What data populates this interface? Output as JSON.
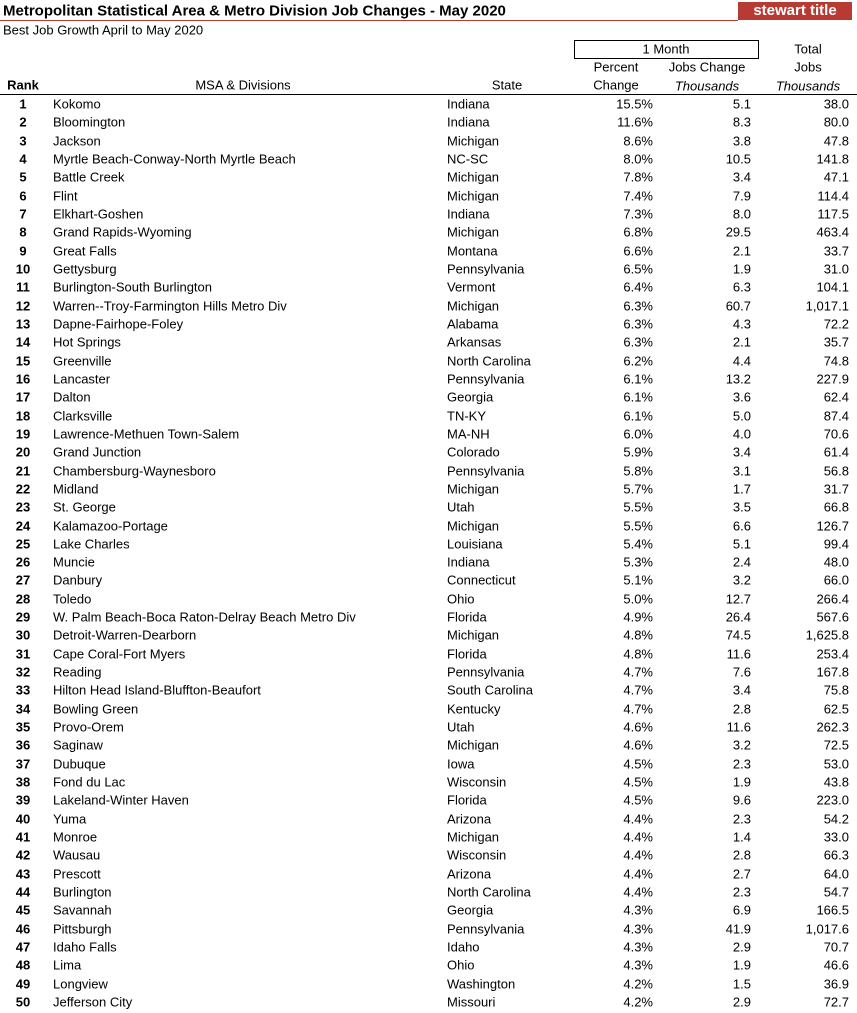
{
  "header": {
    "title": "Metropolitan Statistical Area & Metro Division Job Changes - May 2020",
    "logo": "stewart title",
    "subtitle": "Best Job Growth April to May 2020"
  },
  "table": {
    "group": "1 Month",
    "columns": {
      "rank": "Rank",
      "msa": "MSA & Divisions",
      "state": "State",
      "percent": [
        "Percent",
        "Change"
      ],
      "jobs_change": [
        "Jobs Change",
        "Thousands"
      ],
      "total": [
        "Total",
        "Jobs",
        "Thousands"
      ]
    },
    "rows": [
      [
        "1",
        "Kokomo",
        "Indiana",
        "15.5%",
        "5.1",
        "38.0"
      ],
      [
        "2",
        "Bloomington",
        "Indiana",
        "11.6%",
        "8.3",
        "80.0"
      ],
      [
        "3",
        "Jackson",
        "Michigan",
        "8.6%",
        "3.8",
        "47.8"
      ],
      [
        "4",
        "Myrtle Beach-Conway-North Myrtle Beach",
        "NC-SC",
        "8.0%",
        "10.5",
        "141.8"
      ],
      [
        "5",
        "Battle Creek",
        "Michigan",
        "7.8%",
        "3.4",
        "47.1"
      ],
      [
        "6",
        "Flint",
        "Michigan",
        "7.4%",
        "7.9",
        "114.4"
      ],
      [
        "7",
        "Elkhart-Goshen",
        "Indiana",
        "7.3%",
        "8.0",
        "117.5"
      ],
      [
        "8",
        "Grand Rapids-Wyoming",
        "Michigan",
        "6.8%",
        "29.5",
        "463.4"
      ],
      [
        "9",
        "Great Falls",
        "Montana",
        "6.6%",
        "2.1",
        "33.7"
      ],
      [
        "10",
        "Gettysburg",
        "Pennsylvania",
        "6.5%",
        "1.9",
        "31.0"
      ],
      [
        "11",
        "Burlington-South Burlington",
        "Vermont",
        "6.4%",
        "6.3",
        "104.1"
      ],
      [
        "12",
        "Warren--Troy-Farmington Hills Metro Div",
        "Michigan",
        "6.3%",
        "60.7",
        "1,017.1"
      ],
      [
        "13",
        "Dapne-Fairhope-Foley",
        "Alabama",
        "6.3%",
        "4.3",
        "72.2"
      ],
      [
        "14",
        "Hot Springs",
        "Arkansas",
        "6.3%",
        "2.1",
        "35.7"
      ],
      [
        "15",
        "Greenville",
        "North Carolina",
        "6.2%",
        "4.4",
        "74.8"
      ],
      [
        "16",
        "Lancaster",
        "Pennsylvania",
        "6.1%",
        "13.2",
        "227.9"
      ],
      [
        "17",
        "Dalton",
        "Georgia",
        "6.1%",
        "3.6",
        "62.4"
      ],
      [
        "18",
        "Clarksville",
        "TN-KY",
        "6.1%",
        "5.0",
        "87.4"
      ],
      [
        "19",
        "Lawrence-Methuen Town-Salem",
        "MA-NH",
        "6.0%",
        "4.0",
        "70.6"
      ],
      [
        "20",
        "Grand Junction",
        "Colorado",
        "5.9%",
        "3.4",
        "61.4"
      ],
      [
        "21",
        "Chambersburg-Waynesboro",
        "Pennsylvania",
        "5.8%",
        "3.1",
        "56.8"
      ],
      [
        "22",
        "Midland",
        "Michigan",
        "5.7%",
        "1.7",
        "31.7"
      ],
      [
        "23",
        "St. George",
        "Utah",
        "5.5%",
        "3.5",
        "66.8"
      ],
      [
        "24",
        "Kalamazoo-Portage",
        "Michigan",
        "5.5%",
        "6.6",
        "126.7"
      ],
      [
        "25",
        "Lake Charles",
        "Louisiana",
        "5.4%",
        "5.1",
        "99.4"
      ],
      [
        "26",
        "Muncie",
        "Indiana",
        "5.3%",
        "2.4",
        "48.0"
      ],
      [
        "27",
        "Danbury",
        "Connecticut",
        "5.1%",
        "3.2",
        "66.0"
      ],
      [
        "28",
        "Toledo",
        "Ohio",
        "5.0%",
        "12.7",
        "266.4"
      ],
      [
        "29",
        "W. Palm Beach-Boca Raton-Delray Beach Metro Div",
        "Florida",
        "4.9%",
        "26.4",
        "567.6"
      ],
      [
        "30",
        "Detroit-Warren-Dearborn",
        "Michigan",
        "4.8%",
        "74.5",
        "1,625.8"
      ],
      [
        "31",
        "Cape Coral-Fort Myers",
        "Florida",
        "4.8%",
        "11.6",
        "253.4"
      ],
      [
        "32",
        "Reading",
        "Pennsylvania",
        "4.7%",
        "7.6",
        "167.8"
      ],
      [
        "33",
        "Hilton Head Island-Bluffton-Beaufort",
        "South Carolina",
        "4.7%",
        "3.4",
        "75.8"
      ],
      [
        "34",
        "Bowling Green",
        "Kentucky",
        "4.7%",
        "2.8",
        "62.5"
      ],
      [
        "35",
        "Provo-Orem",
        "Utah",
        "4.6%",
        "11.6",
        "262.3"
      ],
      [
        "36",
        "Saginaw",
        "Michigan",
        "4.6%",
        "3.2",
        "72.5"
      ],
      [
        "37",
        "Dubuque",
        "Iowa",
        "4.5%",
        "2.3",
        "53.0"
      ],
      [
        "38",
        "Fond du Lac",
        "Wisconsin",
        "4.5%",
        "1.9",
        "43.8"
      ],
      [
        "39",
        "Lakeland-Winter Haven",
        "Florida",
        "4.5%",
        "9.6",
        "223.0"
      ],
      [
        "40",
        "Yuma",
        "Arizona",
        "4.4%",
        "2.3",
        "54.2"
      ],
      [
        "41",
        "Monroe",
        "Michigan",
        "4.4%",
        "1.4",
        "33.0"
      ],
      [
        "42",
        "Wausau",
        "Wisconsin",
        "4.4%",
        "2.8",
        "66.3"
      ],
      [
        "43",
        "Prescott",
        "Arizona",
        "4.4%",
        "2.7",
        "64.0"
      ],
      [
        "44",
        "Burlington",
        "North Carolina",
        "4.4%",
        "2.3",
        "54.7"
      ],
      [
        "45",
        "Savannah",
        "Georgia",
        "4.3%",
        "6.9",
        "166.5"
      ],
      [
        "46",
        "Pittsburgh",
        "Pennsylvania",
        "4.3%",
        "41.9",
        "1,017.6"
      ],
      [
        "47",
        "Idaho Falls",
        "Idaho",
        "4.3%",
        "2.9",
        "70.7"
      ],
      [
        "48",
        "Lima",
        "Ohio",
        "4.3%",
        "1.9",
        "46.6"
      ],
      [
        "49",
        "Longview",
        "Washington",
        "4.2%",
        "1.5",
        "36.9"
      ],
      [
        "50",
        "Jefferson City",
        "Missouri",
        "4.2%",
        "2.9",
        "72.7"
      ]
    ]
  }
}
